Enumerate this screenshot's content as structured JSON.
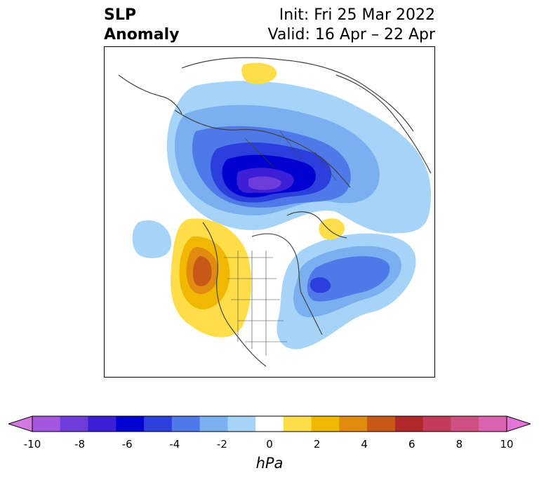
{
  "title": {
    "left_line1": "SLP",
    "left_line2": "Anomaly",
    "init": "Init: Fri 25 Mar 2022",
    "valid": "Valid: 16 Apr – 22 Apr"
  },
  "colorbar": {
    "units": "hPa",
    "tick_labels": [
      "-10",
      "-8",
      "-6",
      "-4",
      "-2",
      "0",
      "2",
      "4",
      "6",
      "8",
      "10"
    ],
    "colors": [
      "#d37ae0",
      "#a356e0",
      "#6e3cd8",
      "#3c1fd6",
      "#0000d0",
      "#2a3fdc",
      "#4f79e8",
      "#7bb0f0",
      "#a6d4f8",
      "#ffffff",
      "#ffde4a",
      "#f0b800",
      "#e08a10",
      "#c85818",
      "#b02828",
      "#c23c5a",
      "#cf4f82",
      "#da63b0",
      "#e673d8"
    ]
  },
  "map": {
    "features": [
      "negative-anomaly-arctic-center",
      "negative-anomaly-north-atlantic",
      "positive-anomaly-northeast-pacific",
      "positive-anomaly-greenland",
      "positive-anomaly-barents"
    ]
  }
}
